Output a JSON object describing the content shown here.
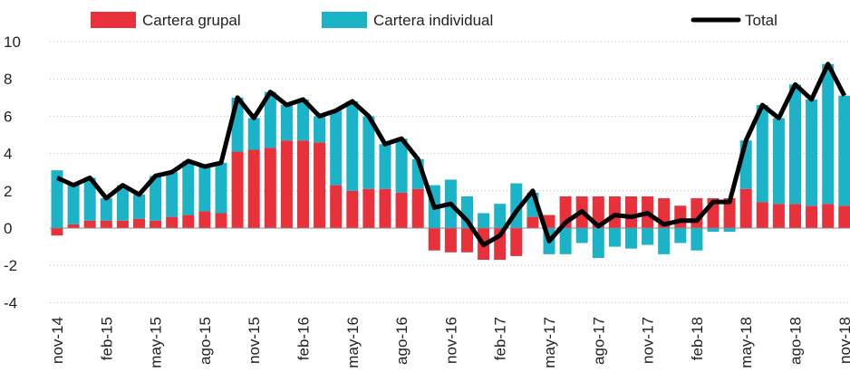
{
  "chart_data": {
    "type": "bar",
    "categories": [
      "nov-14",
      null,
      null,
      "feb-15",
      null,
      null,
      "may-15",
      null,
      null,
      "ago-15",
      null,
      null,
      "nov-15",
      null,
      null,
      "feb-16",
      null,
      null,
      "may-16",
      null,
      null,
      "ago-16",
      null,
      null,
      "nov-16",
      null,
      null,
      "feb-17",
      null,
      null,
      "may-17",
      null,
      null,
      "ago-17",
      null,
      null,
      "nov-17",
      null,
      null,
      "feb-18",
      null,
      null,
      "may-18",
      null,
      null,
      "ago-18",
      null,
      null,
      "nov-18"
    ],
    "series": [
      {
        "name": "Cartera grupal",
        "color": "#e8313a",
        "values": [
          -0.4,
          0.2,
          0.4,
          0.4,
          0.4,
          0.5,
          0.4,
          0.6,
          0.7,
          0.9,
          0.8,
          4.1,
          4.2,
          4.3,
          4.7,
          4.7,
          4.6,
          2.3,
          2.0,
          2.1,
          2.1,
          1.9,
          2.1,
          -1.2,
          -1.3,
          -1.3,
          -1.7,
          -1.7,
          -1.5,
          0.6,
          0.7,
          1.7,
          1.7,
          1.7,
          1.7,
          1.7,
          1.7,
          1.6,
          1.2,
          1.6,
          1.6,
          1.6,
          2.1,
          1.4,
          1.3,
          1.3,
          1.2,
          1.3,
          1.2
        ]
      },
      {
        "name": "Cartera individual",
        "color": "#1bb3c8",
        "values": [
          3.1,
          2.2,
          2.3,
          1.2,
          1.9,
          1.3,
          2.4,
          2.4,
          2.9,
          2.4,
          2.7,
          2.9,
          1.7,
          3.0,
          1.9,
          2.2,
          1.4,
          4.0,
          4.8,
          3.9,
          2.4,
          2.9,
          1.6,
          2.3,
          2.6,
          1.7,
          0.8,
          1.3,
          2.4,
          1.3,
          -1.4,
          -1.4,
          -0.8,
          -1.6,
          -1.0,
          -1.1,
          -0.9,
          -1.4,
          -0.8,
          -1.2,
          -0.2,
          -0.2,
          2.6,
          5.2,
          4.6,
          6.4,
          5.7,
          7.5,
          5.9
        ]
      },
      {
        "name": "Total",
        "type": "line",
        "color": "#000000",
        "values": [
          2.7,
          2.3,
          2.7,
          1.6,
          2.3,
          1.8,
          2.8,
          3.0,
          3.6,
          3.3,
          3.5,
          7.0,
          5.9,
          7.3,
          6.6,
          6.9,
          6.0,
          6.3,
          6.8,
          6.0,
          4.5,
          4.8,
          3.7,
          1.1,
          1.3,
          0.4,
          -0.9,
          -0.4,
          0.9,
          2.0,
          -0.7,
          0.3,
          0.9,
          0.1,
          0.7,
          0.6,
          0.8,
          0.2,
          0.4,
          0.4,
          1.4,
          1.4,
          4.7,
          6.6,
          5.9,
          7.7,
          6.9,
          8.8,
          7.1
        ]
      }
    ],
    "ylim": [
      -4.5,
      10
    ],
    "yticks": [
      -4,
      -2,
      0,
      2,
      4,
      6,
      8,
      10
    ],
    "grid": true
  }
}
